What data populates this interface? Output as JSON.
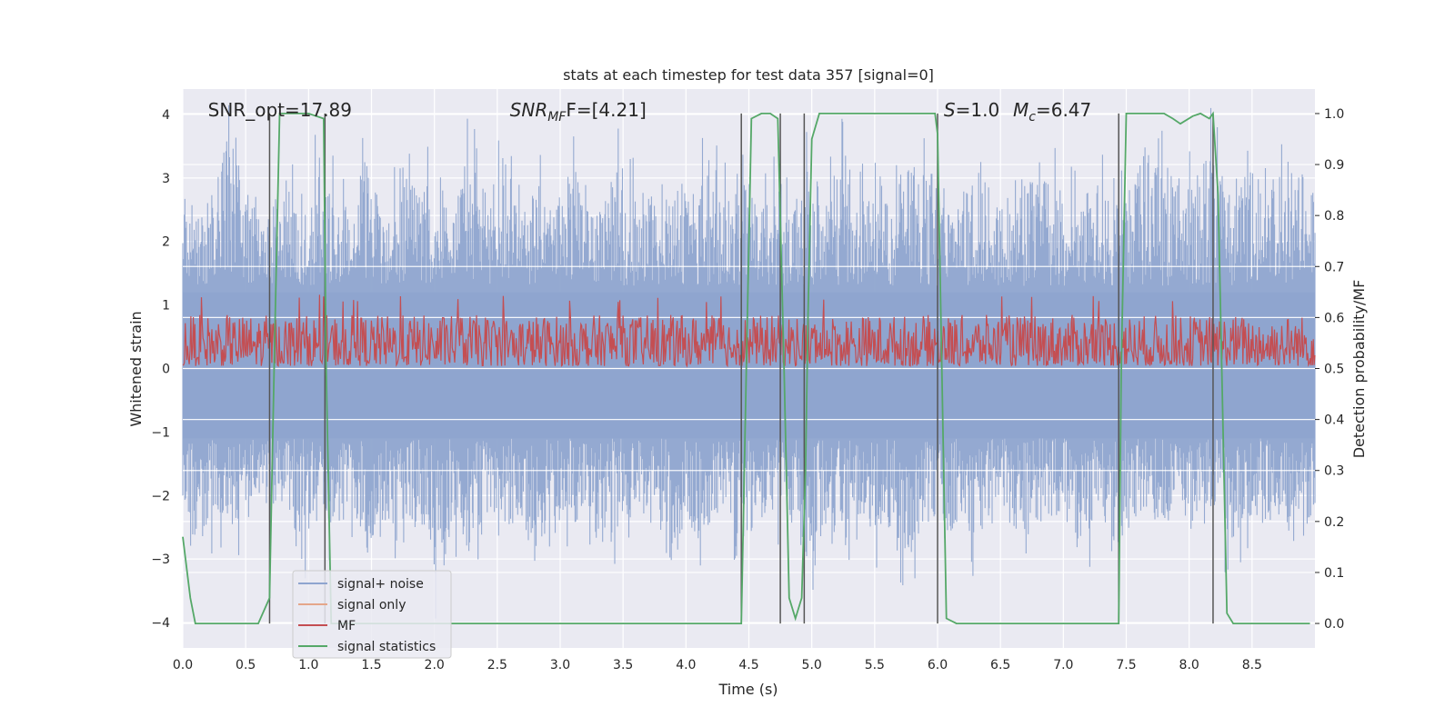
{
  "chart_data": {
    "type": "line",
    "title": "stats at each timestep for test data 357 [signal=0]",
    "xlabel": "Time (s)",
    "ylabel": "Whitened strain",
    "y2label": "Detection probability/MF",
    "xlim": [
      0.0,
      9.0
    ],
    "ylim": [
      -4.4,
      4.4
    ],
    "y2lim": [
      -0.048,
      1.048
    ],
    "xticks": [
      "0.0",
      "0.5",
      "1.0",
      "1.5",
      "2.0",
      "2.5",
      "3.0",
      "3.5",
      "4.0",
      "4.5",
      "5.0",
      "5.5",
      "6.0",
      "6.5",
      "7.0",
      "7.5",
      "8.0",
      "8.5"
    ],
    "yticks": [
      "4",
      "3",
      "2",
      "1",
      "0",
      "−1",
      "−2",
      "−3",
      "−4"
    ],
    "y2ticks": [
      "1.0",
      "0.9",
      "0.8",
      "0.7",
      "0.6",
      "0.5",
      "0.4",
      "0.3",
      "0.2",
      "0.1",
      "0.0"
    ],
    "grid": true,
    "legend_position": "lower-left",
    "annotations": [
      {
        "text": "SNR_opt=17.89",
        "x": 0.2,
        "y": 4.0
      },
      {
        "text": "SNR",
        "sub": "MF",
        "suffix": "F=[4.21]",
        "x": 2.6,
        "y": 4.0
      },
      {
        "text": "S",
        "suffix": "=1.0",
        "x": 6.05,
        "y": 4.0
      },
      {
        "text": "M",
        "sub": "c",
        "suffix": "=6.47",
        "x": 6.6,
        "y": 4.0
      }
    ],
    "vlines_x": [
      0.69,
      1.13,
      4.44,
      4.75,
      4.94,
      6.0,
      7.44,
      8.19
    ],
    "series": [
      {
        "name": "signal+ noise",
        "color": "#8fa5cf",
        "axis": "left",
        "description_values": "noise amplitude envelope, roughly +/-2 with spikes to +/-4",
        "upper_envelope": [
          2.8,
          2.5,
          3.0,
          3.9,
          2.6,
          2.4,
          3.1,
          2.2,
          3.3,
          2.7,
          2.5,
          3.6,
          2.4,
          3.5,
          2.8,
          3.2,
          2.6,
          3.5,
          2.7,
          3.4,
          2.6,
          3.1,
          2.4,
          3.3,
          2.6,
          2.8,
          3.3,
          3.4,
          2.5,
          3.1,
          2.6,
          3.4,
          2.6,
          3.2,
          2.5,
          3.0,
          2.4,
          3.4,
          2.6,
          3.5,
          2.5,
          3.3,
          2.5,
          3.2,
          3.1,
          3.4,
          2.6,
          3.5,
          2.6,
          3.0,
          3.1,
          3.0,
          2.8,
          2.6,
          3.0,
          2.9,
          2.6,
          3.6,
          3.3,
          3.0,
          3.3,
          3.6,
          2.5,
          3.4,
          2.6,
          3.1,
          3.2,
          2.8
        ],
        "lower_envelope": [
          -2.4,
          -2.8,
          -2.2,
          -2.5,
          -2.0,
          -2.3,
          -2.1,
          -2.9,
          -2.2,
          -2.6,
          -2.3,
          -3.0,
          -2.4,
          -2.8,
          -2.2,
          -3.4,
          -2.5,
          -3.0,
          -2.3,
          -2.7,
          -2.4,
          -3.3,
          -2.6,
          -2.5,
          -2.3,
          -3.1,
          -2.3,
          -2.4,
          -2.6,
          -3.1,
          -2.4,
          -2.6,
          -2.2,
          -2.7,
          -2.5,
          -2.3,
          -2.4,
          -3.2,
          -2.5,
          -2.8,
          -2.3,
          -2.6,
          -2.5,
          -3.1,
          -2.5,
          -2.7,
          -2.4,
          -2.8,
          -2.3,
          -2.5,
          -2.6,
          -2.4,
          -2.3,
          -2.9,
          -2.4,
          -3.0,
          -2.5,
          -2.2,
          -2.6,
          -2.4,
          -2.7,
          -2.3,
          -2.8,
          -2.5,
          -2.6,
          -2.4,
          -2.7,
          -2.3
        ]
      },
      {
        "name": "signal only",
        "color": "#e5a68a",
        "axis": "left",
        "values": []
      },
      {
        "name": "MF",
        "color": "#c44e52",
        "axis": "right",
        "baseline": 0.5,
        "range": [
          0.5,
          0.63
        ]
      },
      {
        "name": "signal statistics",
        "color": "#55a868",
        "axis": "right",
        "x": [
          0.0,
          0.06,
          0.1,
          0.15,
          0.3,
          0.6,
          0.69,
          0.73,
          0.77,
          1.0,
          1.12,
          1.14,
          1.18,
          4.44,
          4.48,
          4.52,
          4.6,
          4.67,
          4.73,
          4.78,
          4.82,
          4.87,
          4.92,
          4.95,
          4.97,
          5.0,
          5.06,
          5.5,
          5.9,
          5.98,
          6.0,
          6.07,
          6.15,
          7.44,
          7.46,
          7.5,
          7.8,
          7.87,
          7.93,
          8.03,
          8.09,
          8.16,
          8.19,
          8.23,
          8.3,
          8.35,
          8.43,
          8.96
        ],
        "values": [
          0.17,
          0.05,
          0.0,
          0.0,
          0.0,
          0.0,
          0.05,
          0.55,
          1.0,
          1.0,
          0.99,
          0.5,
          0.0,
          0.0,
          0.5,
          0.99,
          1.0,
          1.0,
          0.99,
          0.5,
          0.05,
          0.01,
          0.05,
          0.3,
          0.6,
          0.95,
          1.0,
          1.0,
          1.0,
          1.0,
          0.96,
          0.01,
          0.0,
          0.0,
          0.5,
          1.0,
          1.0,
          0.99,
          0.98,
          0.995,
          1.0,
          0.99,
          1.0,
          0.84,
          0.02,
          0.0,
          0.0,
          0.0
        ]
      }
    ]
  }
}
